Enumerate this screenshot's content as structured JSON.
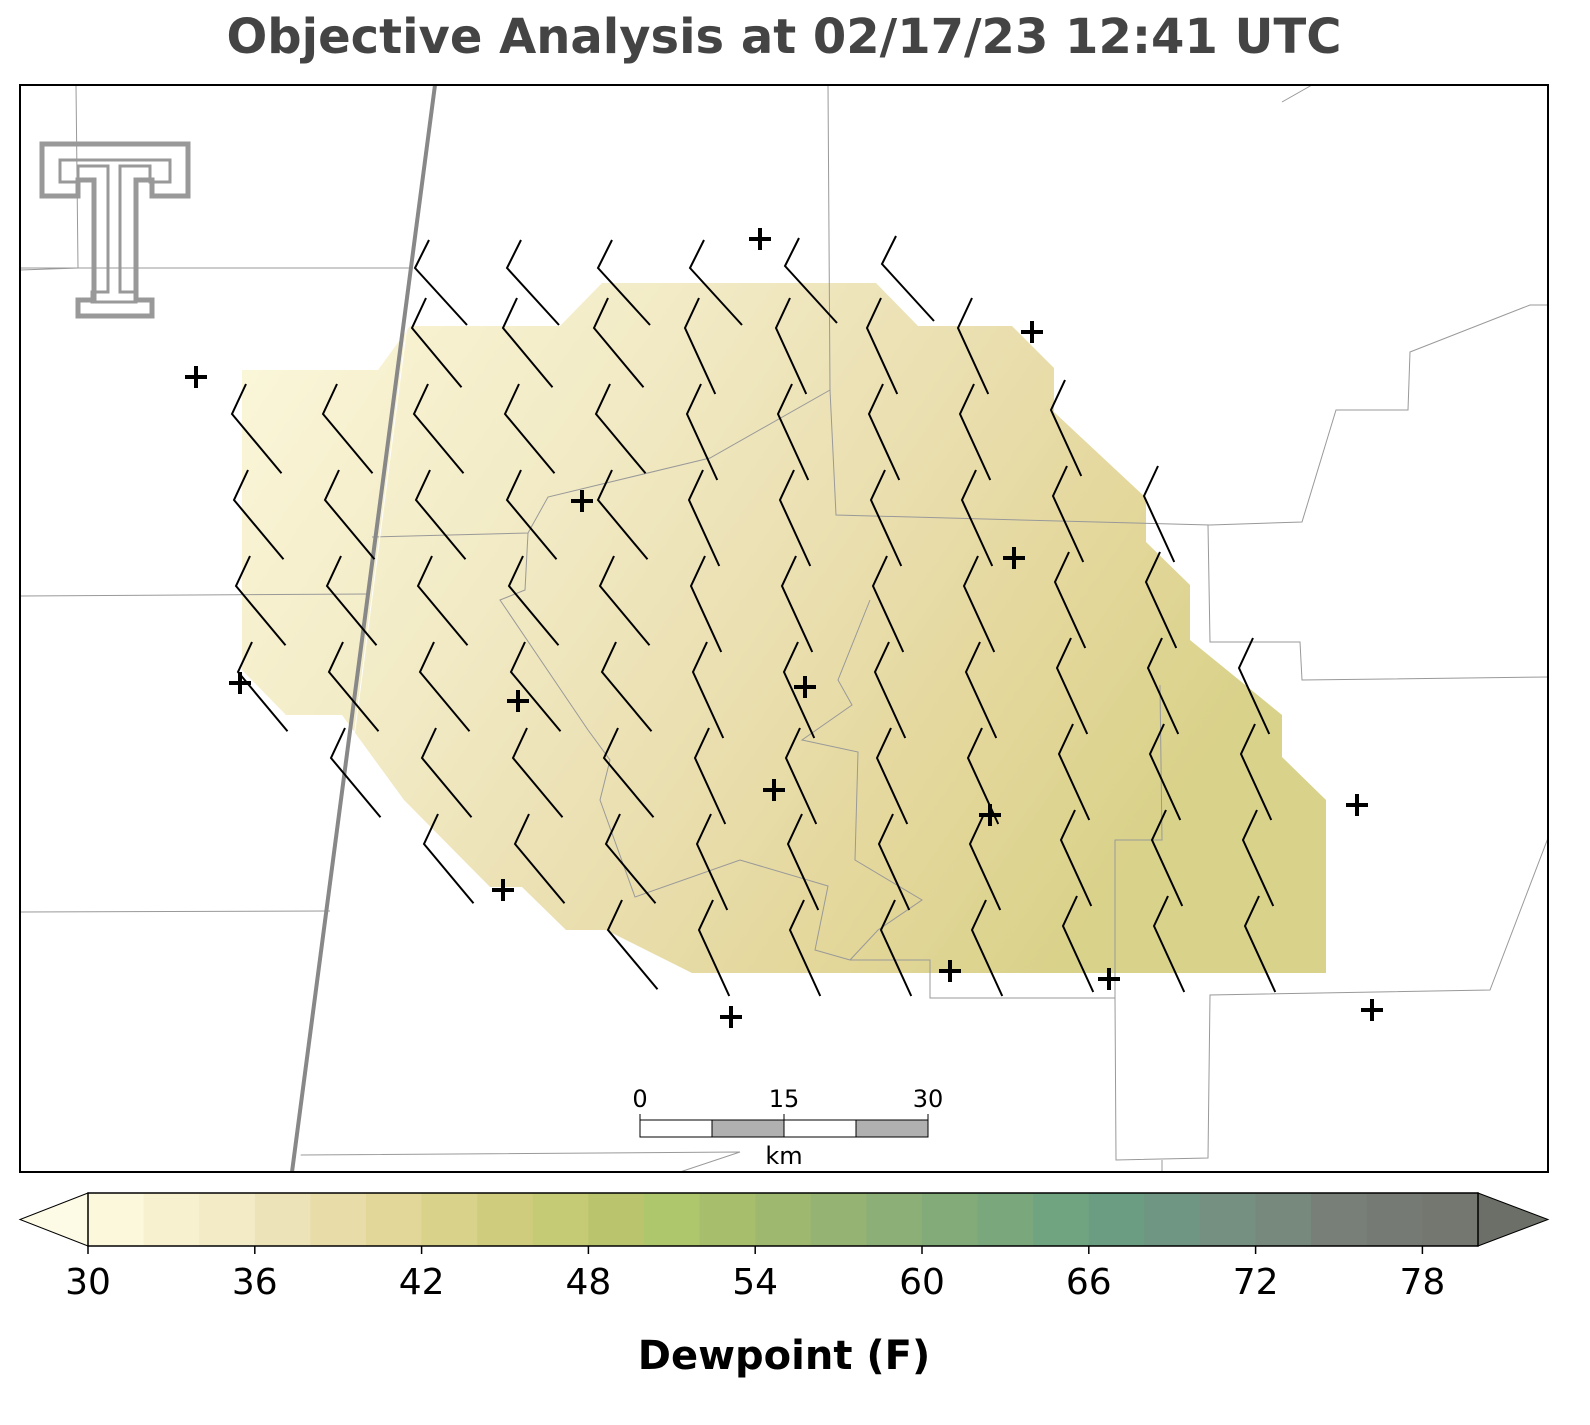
{
  "title": "Objective Analysis at 02/17/23 12:41 UTC",
  "scale_bar": {
    "ticks": [
      0,
      15,
      30
    ],
    "unit": "km"
  },
  "colorbar": {
    "label": "Dewpoint (F)",
    "lim": [
      30,
      80
    ],
    "step": 2,
    "ticks": [
      30,
      36,
      42,
      48,
      54,
      60,
      66,
      72,
      78
    ],
    "under_color": "#fdfbe6",
    "over_color": "#6b6f68",
    "colors": [
      "#fbf8dc",
      "#f7f1d0",
      "#f2ebc6",
      "#ede3b8",
      "#e8dca9",
      "#e2d698",
      "#d9d28a",
      "#cfcd7d",
      "#c5ca74",
      "#b9c46c",
      "#aec66c",
      "#a7bf6d",
      "#9eb870",
      "#95b474",
      "#8caf77",
      "#83ab7a",
      "#7aa87c",
      "#70a37f",
      "#6a9d82",
      "#6e9683",
      "#758f80",
      "#77887c",
      "#777f78",
      "#767a74",
      "#747770"
    ]
  }
}
